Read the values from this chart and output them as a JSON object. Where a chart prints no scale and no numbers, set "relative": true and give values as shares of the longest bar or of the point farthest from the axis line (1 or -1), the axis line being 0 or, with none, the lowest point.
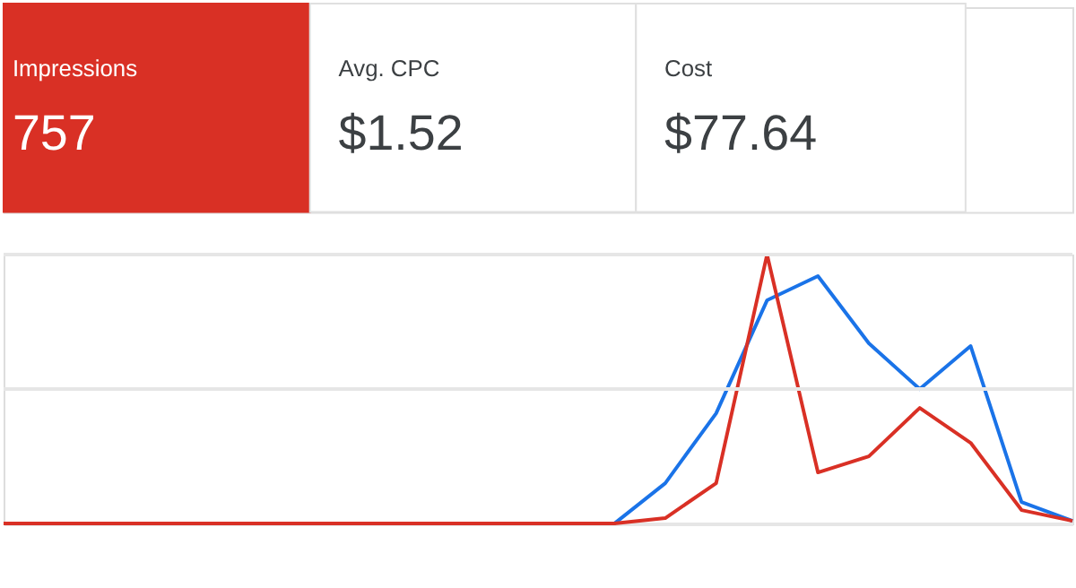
{
  "chart_data": [
    {
      "type": "other",
      "annotations": [
        "Impressions",
        "757",
        "Avg. CPC",
        "$1.52",
        "Cost",
        "$77.64"
      ],
      "colors": [
        "#d93025",
        "#ffffff",
        "#ffffff"
      ]
    },
    {
      "type": "line",
      "relative": true,
      "line_style": "solid",
      "marker": "none",
      "ref_lines": [
        {
          "axis": "y",
          "value": 0.5,
          "color": "#e6e6e6"
        },
        {
          "axis": "y",
          "value": 1,
          "color": "#e6e6e6"
        }
      ],
      "categories": [
        null,
        null,
        null,
        null,
        null,
        null,
        null,
        null,
        null,
        null,
        null,
        null,
        null,
        null,
        null,
        null,
        null,
        null,
        null,
        null,
        null,
        null
      ],
      "series": [
        {
          "color": "#1a73e8",
          "values": [
            null,
            null,
            null,
            null,
            null,
            null,
            null,
            null,
            null,
            null,
            null,
            null,
            0,
            0.15,
            0.41,
            0.83,
            0.92,
            0.67,
            0.5,
            0.66,
            0.08,
            0.01
          ]
        },
        {
          "color": "#d93025",
          "values": [
            0,
            0,
            0,
            0,
            0,
            0,
            0,
            0,
            0,
            0,
            0,
            0,
            0,
            0.02,
            0.15,
            1.0,
            0.19,
            0.25,
            0.43,
            0.3,
            0.05,
            0.01
          ]
        }
      ]
    }
  ]
}
